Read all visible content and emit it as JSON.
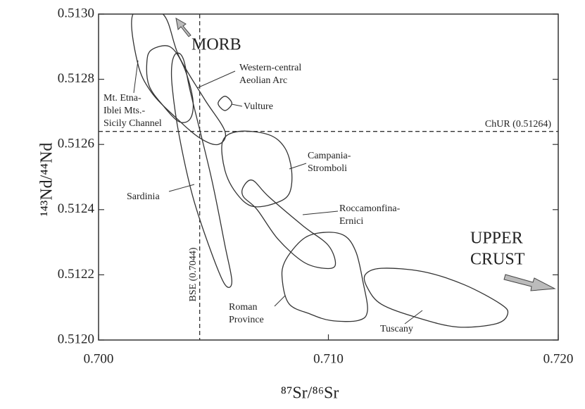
{
  "chart_data": {
    "type": "field",
    "color": "#333333",
    "xlabel": "⁸⁷Sr/⁸⁶Sr",
    "ylabel": "¹⁴³Nd/⁴⁴Nd",
    "xlim": [
      0.7,
      0.72
    ],
    "ylim": [
      0.512,
      0.513
    ],
    "xticks": [
      {
        "value": 0.7,
        "label": "0.700"
      },
      {
        "value": 0.71,
        "label": "0.710"
      },
      {
        "value": 0.72,
        "label": "0.720"
      }
    ],
    "yticks": [
      {
        "value": 0.512,
        "label": "0.5120"
      },
      0.5122,
      0.5124,
      0.5126,
      0.5128,
      {
        "value": 0.513,
        "label": "0.5130"
      }
    ],
    "ref_lines": [
      {
        "axis": "y",
        "value": 0.51264,
        "label": "ChUR (0.51264)"
      },
      {
        "axis": "x",
        "value": 0.7044,
        "label": "BSE (0.7044)"
      }
    ],
    "annotations": [
      {
        "lines": [
          "MORB"
        ]
      },
      {
        "lines": [
          "UPPER",
          "CRUST"
        ]
      }
    ],
    "series": [
      {
        "name": [
          "Mt. Etna-",
          "Iblei Mts.-",
          "Sicily Channel"
        ],
        "x": [
          0.7015,
          0.7028,
          0.7035,
          0.7046,
          0.7055,
          0.7052,
          0.7044,
          0.7034,
          0.7023,
          0.7017
        ],
        "values": [
          0.513,
          0.513,
          0.51287,
          0.51274,
          0.51264,
          0.5126,
          0.51262,
          0.51268,
          0.51276,
          0.51285
        ]
      },
      {
        "name": [
          "Western-central",
          "Aeolian Arc"
        ],
        "x": [
          0.7021,
          0.7023,
          0.7031,
          0.7037,
          0.7041,
          0.704,
          0.7035,
          0.7028,
          0.7022
        ],
        "values": [
          0.51285,
          0.51289,
          0.5129,
          0.51284,
          0.51274,
          0.51268,
          0.51267,
          0.51272,
          0.51278
        ]
      },
      {
        "name": [
          "Sardinia"
        ],
        "x": [
          0.7032,
          0.7034,
          0.7037,
          0.704,
          0.7049,
          0.7055,
          0.7058,
          0.7055,
          0.7049,
          0.7041,
          0.7035,
          0.7032
        ],
        "values": [
          0.51285,
          0.51288,
          0.51286,
          0.51276,
          0.5125,
          0.51229,
          0.51218,
          0.51217,
          0.51227,
          0.51244,
          0.51263,
          0.51278
        ]
      },
      {
        "name": [
          "Vulture"
        ],
        "x": [
          0.7052,
          0.7055,
          0.7058,
          0.7055
        ],
        "values": [
          0.512726,
          0.512748,
          0.512726,
          0.512704
        ]
      },
      {
        "name": [
          "Campania-",
          "Stromboli"
        ],
        "x": [
          0.7054,
          0.7061,
          0.7074,
          0.7081,
          0.7084,
          0.7083,
          0.7077,
          0.7067,
          0.706,
          0.7055
        ],
        "values": [
          0.51261,
          0.51264,
          0.51263,
          0.51259,
          0.51252,
          0.51245,
          0.51242,
          0.51241,
          0.51245,
          0.51252
        ]
      },
      {
        "name": [
          "Roccamonfina-",
          "Ernici"
        ],
        "x": [
          0.7063,
          0.7063,
          0.7067,
          0.7074,
          0.7089,
          0.71,
          0.7103,
          0.7098,
          0.7089,
          0.7078,
          0.7069
        ],
        "values": [
          0.51244,
          0.51247,
          0.51249,
          0.51244,
          0.51235,
          0.51229,
          0.51223,
          0.51222,
          0.51224,
          0.51231,
          0.5124
        ]
      },
      {
        "name": [
          "Roman",
          "Province"
        ],
        "x": [
          0.7081,
          0.7089,
          0.7098,
          0.7107,
          0.7112,
          0.7115,
          0.7117,
          0.7113,
          0.7101,
          0.7092,
          0.7083,
          0.708
        ],
        "values": [
          0.51224,
          0.51231,
          0.51233,
          0.51232,
          0.51227,
          0.51218,
          0.51209,
          0.51206,
          0.51206,
          0.51208,
          0.51211,
          0.51218
        ]
      },
      {
        "name": [
          "Tuscany"
        ],
        "x": [
          0.7116,
          0.7123,
          0.7141,
          0.7159,
          0.7175,
          0.7178,
          0.7173,
          0.7156,
          0.7138,
          0.7123,
          0.7117
        ],
        "values": [
          0.5122,
          0.51222,
          0.51221,
          0.51217,
          0.51211,
          0.51208,
          0.51205,
          0.51204,
          0.51207,
          0.51211,
          0.51216
        ]
      }
    ]
  }
}
